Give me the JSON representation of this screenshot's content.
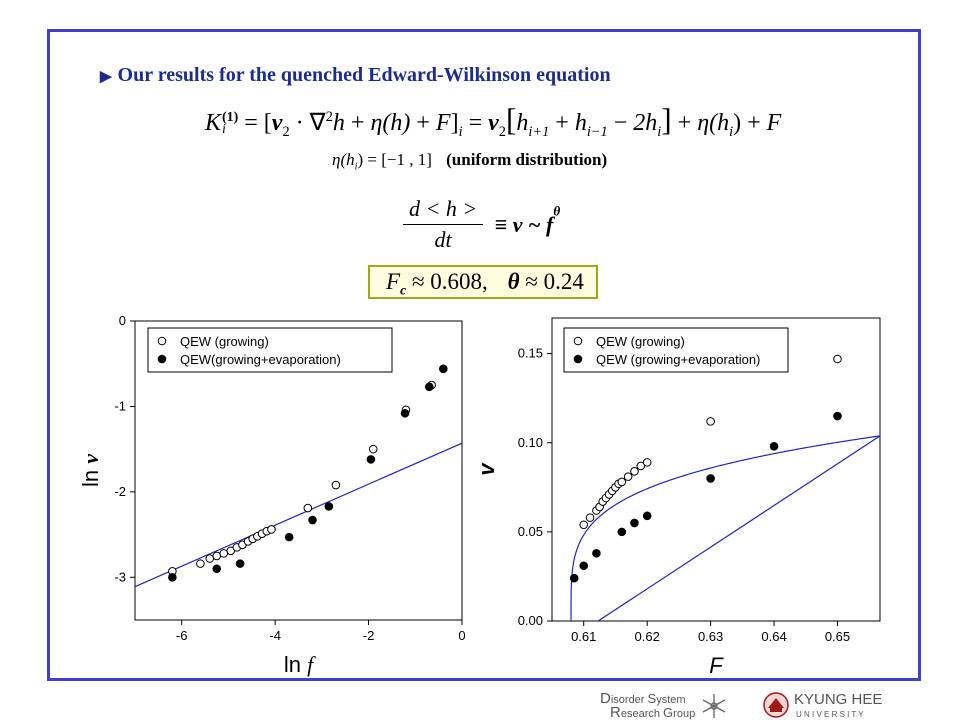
{
  "heading": {
    "bullet_icon": "right-triangle-bullet",
    "text": "Our results for the quenched Edward-Wilkinson equation"
  },
  "equations": {
    "eq1": {
      "lhs_symbol": "K",
      "lhs_sub": "i",
      "lhs_sup": "(1)",
      "eq_sign": "=",
      "bracket_open": "[",
      "nu": "ν",
      "nu_sub": "2",
      "dot": "·",
      "nabla": "∇",
      "nabla_sup": "2",
      "h": "h",
      "plus": "+",
      "eta_h": "η(h)",
      "F": "F",
      "bracket_close": "]",
      "bracket_sub": "i",
      "hi1": "h",
      "hi1_sub": "i+1",
      "hi2": "h",
      "hi2_sub": "i−1",
      "minus": "−",
      "two_h": "2h",
      "two_h_sub": "i",
      "big_open": "[",
      "big_close": "]",
      "eta_hi": "η(h",
      "eta_hi_sub": "i",
      "close_paren": ")"
    },
    "eq2": {
      "eta": "η",
      "arg": "(h",
      "arg_sub": "i",
      "rest_math": ") = [−1 , 1]",
      "note": "(uniform distribution)"
    },
    "eq3": {
      "numerator": "d < h >",
      "denominator": "dt",
      "rel": "≡ v ~ f",
      "exponent": "θ"
    }
  },
  "result": {
    "Fc_symbol": "F",
    "Fc_sub": "c",
    "Fc_value": "≈ 0.608,",
    "theta_symbol": "θ",
    "theta_value": "≈ 0.24"
  },
  "colors": {
    "frame": "#3f3fc8",
    "heading": "#1b2c8c",
    "fit_line": "#2323c8",
    "box_border": "#9aaa1c",
    "box_fill": "#fffde0"
  },
  "logo": {
    "group_line1_a": "D",
    "group_line1_b": "isorder ",
    "group_line1_c": "S",
    "group_line1_d": "ystem",
    "group_line2_a": "R",
    "group_line2_b": "esearch ",
    "group_line2_c": "G",
    "group_line2_d": "roup",
    "university_1": "KYUNG HEE",
    "university_2": "U N I V E R S I T Y",
    "icons": [
      "snowflake-icon",
      "university-seal-icon"
    ]
  },
  "chart_data": [
    {
      "type": "scatter",
      "title": "",
      "xlabel": "ln f",
      "ylabel": "ln v",
      "xlim": [
        -7,
        0
      ],
      "ylim": [
        -3.5,
        0
      ],
      "xticks": [
        "-6",
        "-4",
        "-2",
        "0"
      ],
      "yticks": [
        "0",
        "-1",
        "-2",
        "-3"
      ],
      "xtick_values": [
        -6,
        -4,
        -2,
        0
      ],
      "ytick_values": [
        0,
        -1,
        -2,
        -3
      ],
      "legend": "top-right",
      "series": [
        {
          "name": "QEW (growing)",
          "marker": "open-circle",
          "points": [
            [
              -6.2,
              -2.93
            ],
            [
              -5.6,
              -2.84
            ],
            [
              -5.4,
              -2.78
            ],
            [
              -5.25,
              -2.75
            ],
            [
              -5.1,
              -2.72
            ],
            [
              -4.95,
              -2.69
            ],
            [
              -4.82,
              -2.65
            ],
            [
              -4.7,
              -2.62
            ],
            [
              -4.58,
              -2.58
            ],
            [
              -4.48,
              -2.55
            ],
            [
              -4.38,
              -2.52
            ],
            [
              -4.28,
              -2.49
            ],
            [
              -4.18,
              -2.46
            ],
            [
              -4.08,
              -2.44
            ],
            [
              -3.3,
              -2.19
            ],
            [
              -2.7,
              -1.92
            ],
            [
              -1.9,
              -1.5
            ],
            [
              -1.2,
              -1.04
            ],
            [
              -0.65,
              -0.75
            ]
          ]
        },
        {
          "name": "QEW(growing+evaporation)",
          "marker": "filled-circle",
          "points": [
            [
              -6.2,
              -3.0
            ],
            [
              -5.25,
              -2.9
            ],
            [
              -4.75,
              -2.84
            ],
            [
              -3.7,
              -2.53
            ],
            [
              -3.2,
              -2.33
            ],
            [
              -2.85,
              -2.17
            ],
            [
              -1.95,
              -1.62
            ],
            [
              -1.22,
              -1.08
            ],
            [
              -0.7,
              -0.77
            ],
            [
              -0.4,
              -0.56
            ]
          ]
        }
      ],
      "fit_line": {
        "slope": 0.24,
        "intercept": -1.43
      }
    },
    {
      "type": "scatter",
      "title": "",
      "xlabel": "F",
      "ylabel": "v",
      "xlim": [
        0.605,
        0.6567
      ],
      "ylim": [
        0,
        0.17
      ],
      "xticks": [
        "0.61",
        "0.62",
        "0.63",
        "0.64",
        "0.65"
      ],
      "yticks": [
        "0.00",
        "0.05",
        "0.10",
        "0.15"
      ],
      "xtick_values": [
        0.61,
        0.62,
        0.63,
        0.64,
        0.65
      ],
      "ytick_values": [
        0,
        0.05,
        0.1,
        0.15
      ],
      "legend": "top-left",
      "series": [
        {
          "name": "QEW (growing)",
          "marker": "open-circle",
          "points": [
            [
              0.61,
              0.054
            ],
            [
              0.611,
              0.058
            ],
            [
              0.612,
              0.062
            ],
            [
              0.6125,
              0.064
            ],
            [
              0.613,
              0.067
            ],
            [
              0.6135,
              0.069
            ],
            [
              0.614,
              0.071
            ],
            [
              0.6145,
              0.073
            ],
            [
              0.615,
              0.075
            ],
            [
              0.6155,
              0.077
            ],
            [
              0.616,
              0.078
            ],
            [
              0.617,
              0.081
            ],
            [
              0.618,
              0.084
            ],
            [
              0.619,
              0.087
            ],
            [
              0.62,
              0.089
            ],
            [
              0.63,
              0.112
            ],
            [
              0.65,
              0.147
            ]
          ]
        },
        {
          "name": "QEW (growing+evaporation)",
          "marker": "filled-circle",
          "points": [
            [
              0.6085,
              0.024
            ],
            [
              0.61,
              0.031
            ],
            [
              0.612,
              0.038
            ],
            [
              0.616,
              0.05
            ],
            [
              0.618,
              0.055
            ],
            [
              0.62,
              0.059
            ],
            [
              0.63,
              0.08
            ],
            [
              0.64,
              0.098
            ],
            [
              0.65,
              0.115
            ]
          ]
        }
      ],
      "fit_curve": {
        "Fc": 0.608,
        "theta": 0.24,
        "A": 0.2145
      }
    }
  ]
}
